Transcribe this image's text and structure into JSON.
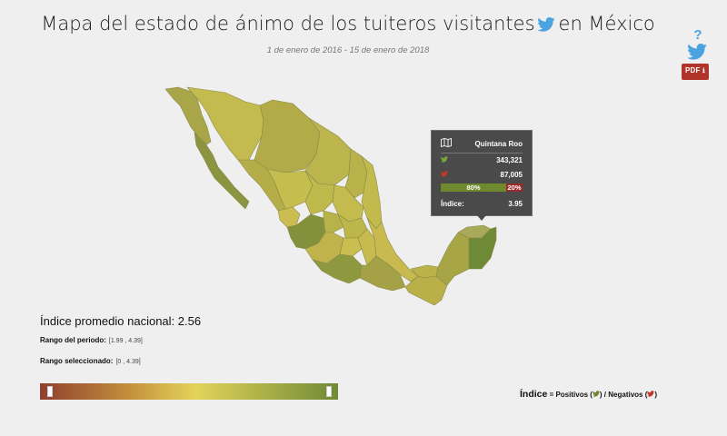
{
  "page": {
    "title_main": "Mapa del estado de ánimo de los tuiteros visitantes",
    "title_tail": "en México",
    "subtitle": "1 de enero de 2016 - 15 de enero de 2018"
  },
  "toolbar": {
    "help_label": "?",
    "pdf_label": "PDF"
  },
  "icons": {
    "twitter": "twitter-bird-icon",
    "pdf_download": "download-arrow-icon",
    "map": "map-icon",
    "help": "question-icon"
  },
  "colors": {
    "twitter_blue": "#4aa3e0",
    "positive": "#6f8a2e",
    "negative": "#9b2a2a",
    "pdf_red": "#b0342a"
  },
  "tooltip": {
    "state": "Quintana Roo",
    "positive_count": "343,321",
    "negative_count": "87,005",
    "positive_pct": 80,
    "positive_pct_label": "80%",
    "negative_pct_label": "20%",
    "index_label": "Índice:",
    "index_value": "3.95"
  },
  "stats": {
    "avg_label": "Índice promedio nacional: 2.56",
    "period_range_label": "Rango del periodo:",
    "period_range_value": "[1.99 , 4.39]",
    "selected_range_label": "Rango seleccionado:",
    "selected_range_value": "[0 , 4.39]"
  },
  "legend": {
    "index_word": "Índice",
    "equals": " = Positivos (",
    "mid": ") / Negativos (",
    "end": ")"
  }
}
